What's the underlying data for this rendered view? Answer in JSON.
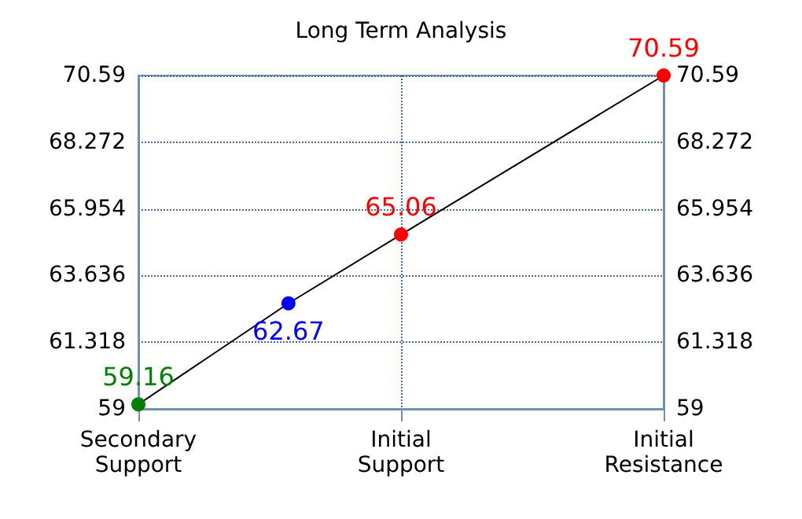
{
  "chart_data": {
    "type": "line",
    "title": "Long Term Analysis",
    "categories": [
      "Secondary\nSupport",
      null,
      null,
      null,
      null,
      null,
      null,
      "Initial\nSupport",
      null,
      null,
      null,
      null,
      null,
      null,
      "Initial\nResistance"
    ],
    "series": [
      {
        "color": "#000000",
        "values": [
          59.16,
          null,
          null,
          null,
          62.67,
          null,
          null,
          65.06,
          null,
          null,
          null,
          null,
          null,
          null,
          70.59
        ],
        "colors": [
          "#008000",
          null,
          null,
          null,
          "#0000ff",
          null,
          null,
          "#ff0000",
          null,
          null,
          null,
          null,
          null,
          null,
          "#ff0000"
        ]
      }
    ],
    "ylim": [
      59,
      70.59
    ],
    "yticks": [
      59,
      61.318,
      63.636,
      65.954,
      68.272,
      70.59
    ],
    "y2lim": [
      59,
      70.59
    ],
    "y2ticks": [
      59,
      61.318,
      63.636,
      65.954,
      68.272,
      70.59
    ],
    "grid": true,
    "data_labels": true,
    "marker": "circle",
    "line_style": "solid"
  }
}
